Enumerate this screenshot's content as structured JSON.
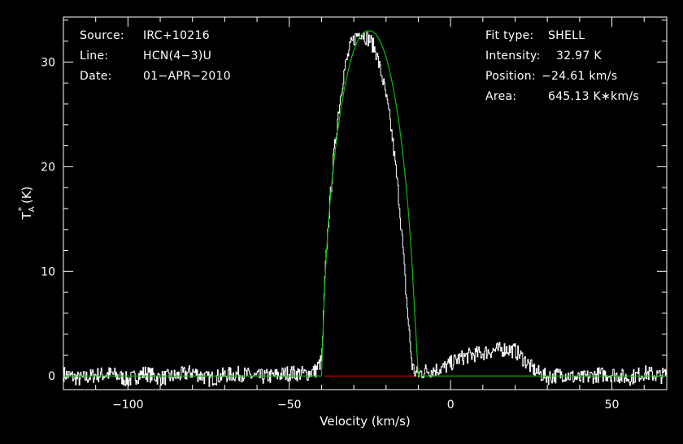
{
  "header_left": {
    "source_label": "Source:",
    "source_value": "IRC+10216",
    "line_label": "Line:",
    "line_value": "HCN(4−3)U",
    "date_label": "Date:",
    "date_value": "01−APR−2010"
  },
  "header_right": {
    "fit_label": "Fit type:",
    "fit_value": "SHELL",
    "intensity_label": "Intensity:",
    "intensity_value": "32.97 K",
    "position_label": "Position:",
    "position_value": "−24.61 km/s",
    "area_label": "Area:",
    "area_value": "645.13 K∗km/s"
  },
  "chart_data": {
    "type": "line",
    "xlabel": "Velocity (km/s)",
    "ylabel_main": "T",
    "ylabel_sup": "*",
    "ylabel_sub": "A",
    "ylabel_unit": "(K)",
    "xlim": [
      -120,
      67
    ],
    "ylim": [
      -1.3,
      34.3
    ],
    "x_ticks": [
      -100,
      -50,
      0,
      50
    ],
    "x_tick_labels": [
      "−100",
      "−50",
      "0",
      "50"
    ],
    "y_ticks": [
      0,
      10,
      20,
      30
    ],
    "y_tick_labels": [
      "0",
      "10",
      "20",
      "30"
    ],
    "colors": {
      "background": "#000000",
      "axes": "#ffffff",
      "spectrum": "#ffffff",
      "fit": "#00c000",
      "baseline": "#e00000"
    },
    "series": [
      {
        "role": "spectrum",
        "x": [
          -120,
          -115,
          -110,
          -105,
          -100,
          -95,
          -90,
          -85,
          -80,
          -75,
          -70,
          -65,
          -60,
          -55,
          -50,
          -45,
          -42,
          -40,
          -39,
          -38,
          -37,
          -36,
          -35,
          -34,
          -33,
          -32,
          -31,
          -30,
          -29,
          -28,
          -27,
          -26,
          -25,
          -24,
          -23,
          -22,
          -21,
          -20,
          -19,
          -18,
          -17,
          -16,
          -15,
          -14,
          -13,
          -12,
          -11,
          -10,
          -8,
          -5,
          -2,
          0,
          2,
          5,
          8,
          10,
          12,
          15,
          17,
          20,
          22,
          25,
          27,
          30,
          35,
          40,
          45,
          50,
          55,
          60,
          65,
          67
        ],
        "y": [
          0.2,
          -0.3,
          0.1,
          0.2,
          -0.4,
          0.3,
          -0.2,
          0.0,
          0.4,
          -0.3,
          0.1,
          0.2,
          -0.1,
          0.0,
          0.3,
          0.2,
          0.5,
          1.5,
          9.5,
          14.5,
          18.5,
          21.8,
          24.8,
          27.2,
          29.2,
          30.5,
          31.6,
          32.2,
          32.6,
          32.9,
          32.6,
          32.3,
          32.1,
          31.5,
          30.8,
          29.4,
          28.2,
          26.5,
          24.7,
          22.4,
          19.6,
          16.6,
          12.8,
          8.4,
          4.5,
          1.0,
          0.3,
          0.2,
          0.5,
          0.6,
          0.8,
          1.2,
          1.6,
          1.9,
          2.1,
          2.2,
          2.4,
          2.5,
          2.6,
          2.4,
          1.8,
          0.8,
          0.3,
          -0.1,
          0.2,
          -0.3,
          0.1,
          0.2,
          -0.2,
          0.3,
          0.0,
          0.2
        ]
      },
      {
        "role": "fit",
        "x": [
          -120,
          -40,
          -39,
          -38,
          -37,
          -36,
          -35,
          -34,
          -33,
          -32,
          -31,
          -30,
          -29,
          -28,
          -27,
          -26,
          -25,
          -24.61,
          -24,
          -23,
          -22,
          -21,
          -20,
          -19,
          -18,
          -17,
          -16,
          -15,
          -14,
          -13,
          -12,
          -11,
          -10,
          67
        ],
        "y": [
          0,
          0,
          8.8,
          14.1,
          17.9,
          20.9,
          23.4,
          25.5,
          27.3,
          28.8,
          30.1,
          31.1,
          31.9,
          32.5,
          32.8,
          32.97,
          32.96,
          32.97,
          32.9,
          32.6,
          32.1,
          31.4,
          30.5,
          29.3,
          27.9,
          26.2,
          24.2,
          21.8,
          18.9,
          15.4,
          11.1,
          5.4,
          0,
          0
        ]
      },
      {
        "role": "baseline",
        "x": [
          -39,
          -10
        ],
        "y": [
          0,
          0
        ]
      }
    ]
  }
}
